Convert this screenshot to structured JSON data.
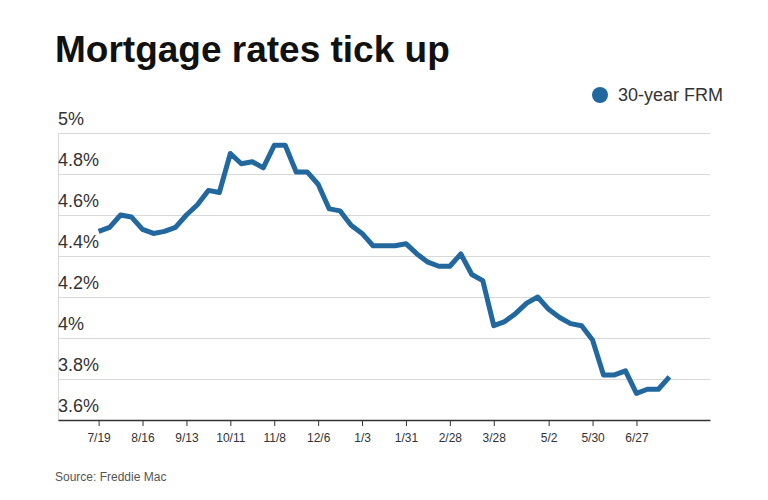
{
  "chart_data": {
    "type": "line",
    "title": "Mortgage rates tick up",
    "source": "Source: Freddie Mac",
    "x": [
      "7/19",
      null,
      null,
      null,
      "8/16",
      null,
      null,
      null,
      "9/13",
      null,
      null,
      null,
      "10/11",
      null,
      null,
      null,
      "11/8",
      null,
      null,
      null,
      "12/6",
      null,
      null,
      null,
      "1/3",
      null,
      null,
      null,
      "1/31",
      null,
      null,
      null,
      "2/28",
      null,
      null,
      null,
      "3/28",
      null,
      null,
      null,
      null,
      "5/2",
      null,
      null,
      null,
      "5/30",
      null,
      null,
      null,
      "6/27",
      null,
      null,
      null
    ],
    "series": [
      {
        "name": "30-year FRM",
        "color": "#22689f",
        "values": [
          4.52,
          4.54,
          4.6,
          4.59,
          4.53,
          4.51,
          4.52,
          4.54,
          4.6,
          4.65,
          4.72,
          4.71,
          4.9,
          4.85,
          4.86,
          4.83,
          4.94,
          4.94,
          4.81,
          4.81,
          4.75,
          4.63,
          4.62,
          4.55,
          4.51,
          4.45,
          4.45,
          4.45,
          4.46,
          4.41,
          4.37,
          4.35,
          4.35,
          4.41,
          4.31,
          4.28,
          4.06,
          4.08,
          4.12,
          4.17,
          4.2,
          4.14,
          4.1,
          4.07,
          4.06,
          3.99,
          3.82,
          3.82,
          3.84,
          3.73,
          3.75,
          3.75,
          3.81
        ]
      }
    ],
    "ylim": [
      3.6,
      5
    ],
    "yticks": [
      {
        "value": 3.6,
        "label": "3.6%"
      },
      {
        "value": 3.8,
        "label": "3.8%"
      },
      {
        "value": 4.0,
        "label": "4%"
      },
      {
        "value": 4.2,
        "label": "4.2%"
      },
      {
        "value": 4.4,
        "label": "4.4%"
      },
      {
        "value": 4.6,
        "label": "4.6%"
      },
      {
        "value": 4.8,
        "label": "4.8%"
      },
      {
        "value": 5.0,
        "label": "5%"
      }
    ],
    "grid": true,
    "legend": "top-right"
  }
}
